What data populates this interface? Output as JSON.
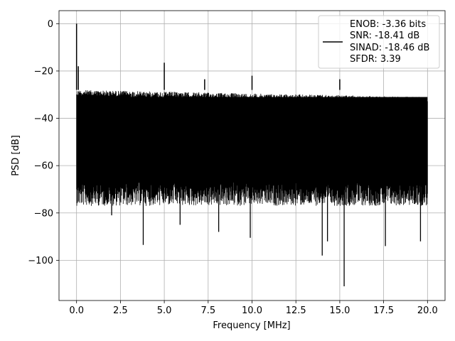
{
  "chart_data": {
    "type": "line",
    "title": "",
    "xlabel": "Frequency [MHz]",
    "ylabel": "PSD [dB]",
    "xlim": [
      -1.0,
      21.0
    ],
    "ylim": [
      -117.0,
      5.5
    ],
    "xticks": [
      0.0,
      2.5,
      5.0,
      7.5,
      10.0,
      12.5,
      15.0,
      17.5,
      20.0
    ],
    "xtick_labels": [
      "0.0",
      "2.5",
      "5.0",
      "7.5",
      "10.0",
      "12.5",
      "15.0",
      "17.5",
      "20.0"
    ],
    "yticks": [
      0,
      -20,
      -40,
      -60,
      -80,
      -100
    ],
    "ytick_labels": [
      "0",
      "−20",
      "−40",
      "−60",
      "−80",
      "−100"
    ],
    "grid": true,
    "legend_position": "top-right",
    "series": [
      {
        "name": "",
        "color": "#000000",
        "noise_floor_top_db": -28,
        "noise_floor_bottom_db": -65,
        "spikes": [
          {
            "x": 0.0,
            "y": 0.0
          },
          {
            "x": 0.1,
            "y": -18.0
          },
          {
            "x": 5.0,
            "y": -16.5
          },
          {
            "x": 7.3,
            "y": -23.5
          },
          {
            "x": 10.0,
            "y": -22.0
          },
          {
            "x": 15.0,
            "y": -23.5
          }
        ],
        "dips": [
          {
            "x": 2.0,
            "y": -81.0
          },
          {
            "x": 3.8,
            "y": -93.5
          },
          {
            "x": 5.9,
            "y": -85.0
          },
          {
            "x": 8.1,
            "y": -88.0
          },
          {
            "x": 9.9,
            "y": -90.5
          },
          {
            "x": 14.0,
            "y": -98.0
          },
          {
            "x": 14.3,
            "y": -92.0
          },
          {
            "x": 15.25,
            "y": -111.0
          },
          {
            "x": 17.6,
            "y": -94.0
          },
          {
            "x": 19.6,
            "y": -92.0
          }
        ]
      }
    ],
    "legend_entries": [
      "ENOB: -3.36 bits",
      "SNR: -18.41 dB",
      "SINAD: -18.46 dB",
      "SFDR: 3.39"
    ]
  }
}
